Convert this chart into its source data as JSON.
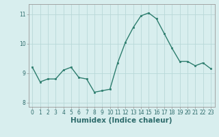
{
  "x": [
    0,
    1,
    2,
    3,
    4,
    5,
    6,
    7,
    8,
    9,
    10,
    11,
    12,
    13,
    14,
    15,
    16,
    17,
    18,
    19,
    20,
    21,
    22,
    23
  ],
  "y": [
    9.2,
    8.7,
    8.8,
    8.8,
    9.1,
    9.2,
    8.85,
    8.8,
    8.35,
    8.4,
    8.45,
    9.35,
    10.05,
    10.55,
    10.95,
    11.05,
    10.85,
    10.35,
    9.85,
    9.4,
    9.4,
    9.25,
    9.35,
    9.15
  ],
  "line_color": "#2d7d6e",
  "marker": "s",
  "marker_size": 1.8,
  "xlabel": "Humidex (Indice chaleur)",
  "ylim": [
    7.85,
    11.35
  ],
  "xlim": [
    -0.5,
    23.5
  ],
  "yticks": [
    8,
    9,
    10,
    11
  ],
  "xticks": [
    0,
    1,
    2,
    3,
    4,
    5,
    6,
    7,
    8,
    9,
    10,
    11,
    12,
    13,
    14,
    15,
    16,
    17,
    18,
    19,
    20,
    21,
    22,
    23
  ],
  "bg_color": "#d8eeee",
  "grid_color": "#b8d8d8",
  "tick_label_fontsize": 5.5,
  "xlabel_fontsize": 7.5,
  "line_width": 1.0,
  "label_color": "#2d6b6b"
}
